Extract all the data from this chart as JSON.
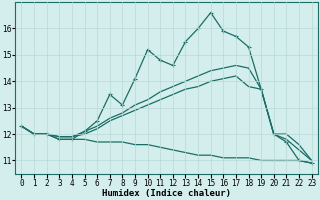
{
  "xlabel": "Humidex (Indice chaleur)",
  "bg_color": "#d4eeed",
  "line_color": "#1a6e65",
  "grid_color": "#b8d8d4",
  "x": [
    0,
    1,
    2,
    3,
    4,
    5,
    6,
    7,
    8,
    9,
    10,
    11,
    12,
    13,
    14,
    15,
    16,
    17,
    18,
    19,
    20,
    21,
    22,
    23
  ],
  "line1": [
    12.3,
    12.0,
    12.0,
    11.8,
    11.8,
    12.1,
    12.5,
    13.5,
    13.1,
    14.1,
    15.2,
    14.8,
    14.6,
    15.5,
    16.0,
    16.6,
    15.9,
    15.7,
    15.3,
    13.7,
    12.0,
    11.7,
    11.0,
    10.9
  ],
  "line2": [
    12.3,
    12.0,
    12.0,
    11.9,
    11.9,
    12.1,
    12.3,
    12.6,
    12.8,
    13.1,
    13.3,
    13.6,
    13.8,
    14.0,
    14.2,
    14.4,
    14.5,
    14.6,
    14.5,
    13.7,
    12.0,
    11.8,
    11.4,
    11.0
  ],
  "line3": [
    12.3,
    12.0,
    12.0,
    11.9,
    11.9,
    12.0,
    12.2,
    12.5,
    12.7,
    12.9,
    13.1,
    13.3,
    13.5,
    13.7,
    13.8,
    14.0,
    14.1,
    14.2,
    13.8,
    13.7,
    12.0,
    12.0,
    11.6,
    11.0
  ],
  "line4": [
    12.3,
    12.0,
    12.0,
    11.8,
    11.8,
    11.8,
    11.7,
    11.7,
    11.7,
    11.6,
    11.6,
    11.5,
    11.4,
    11.3,
    11.2,
    11.2,
    11.1,
    11.1,
    11.1,
    11.0,
    11.0,
    11.0,
    11.0,
    10.9
  ],
  "ylim": [
    10.5,
    17.0
  ],
  "yticks": [
    11,
    12,
    13,
    14,
    15,
    16
  ],
  "xlim": [
    -0.5,
    23.5
  ],
  "xticks": [
    0,
    1,
    2,
    3,
    4,
    5,
    6,
    7,
    8,
    9,
    10,
    11,
    12,
    13,
    14,
    15,
    16,
    17,
    18,
    19,
    20,
    21,
    22,
    23
  ],
  "xticklabels": [
    "0",
    "1",
    "2",
    "3",
    "4",
    "5",
    "6",
    "7",
    "8",
    "9",
    "10",
    "11",
    "12",
    "13",
    "14",
    "15",
    "16",
    "17",
    "18",
    "19",
    "20",
    "21",
    "22",
    "23"
  ]
}
